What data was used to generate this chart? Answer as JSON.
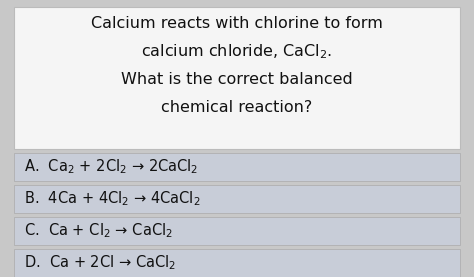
{
  "title_lines": [
    "Calcium reacts with chlorine to form",
    "calcium chloride, CaCl$_2$.",
    "What is the correct balanced",
    "chemical reaction?"
  ],
  "options": [
    "A.  Ca$_2$ + 2Cl$_2$ → 2CaCl$_2$",
    "B.  4Ca + 4Cl$_2$ → 4CaCl$_2$",
    "C.  Ca + Cl$_2$ → CaCl$_2$",
    "D.  Ca + 2Cl → CaCl$_2$"
  ],
  "bg_color": "#c8c8c8",
  "title_bg": "#f5f5f5",
  "option_bg": "#c8cdd8",
  "text_color": "#111111",
  "font_size_title": 11.5,
  "font_size_option": 10.5
}
